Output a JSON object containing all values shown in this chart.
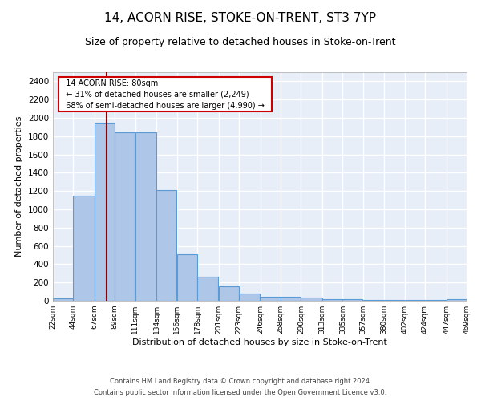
{
  "title": "14, ACORN RISE, STOKE-ON-TRENT, ST3 7YP",
  "subtitle": "Size of property relative to detached houses in Stoke-on-Trent",
  "xlabel": "Distribution of detached houses by size in Stoke-on-Trent",
  "ylabel": "Number of detached properties",
  "footnote1": "Contains HM Land Registry data © Crown copyright and database right 2024.",
  "footnote2": "Contains public sector information licensed under the Open Government Licence v3.0.",
  "annotation_line1": "14 ACORN RISE: 80sqm",
  "annotation_line2": "← 31% of detached houses are smaller (2,249)",
  "annotation_line3": "68% of semi-detached houses are larger (4,990) →",
  "property_size_sqm": 80,
  "bin_edges": [
    22,
    44,
    67,
    89,
    111,
    134,
    156,
    178,
    201,
    223,
    246,
    268,
    290,
    313,
    335,
    357,
    380,
    402,
    424,
    447,
    469
  ],
  "bar_heights": [
    25,
    1150,
    1950,
    1840,
    1840,
    1210,
    510,
    265,
    155,
    80,
    40,
    40,
    35,
    15,
    20,
    10,
    5,
    10,
    5,
    15
  ],
  "bar_color": "#aec6e8",
  "bar_edge_color": "#5b9bd5",
  "vline_color": "#8b0000",
  "background_color": "#e8eef8",
  "grid_color": "#ffffff",
  "ylim": [
    0,
    2500
  ],
  "yticks": [
    0,
    200,
    400,
    600,
    800,
    1000,
    1200,
    1400,
    1600,
    1800,
    2000,
    2200,
    2400
  ],
  "title_fontsize": 11,
  "subtitle_fontsize": 9,
  "xlabel_fontsize": 8,
  "ylabel_fontsize": 8,
  "tick_fontsize": 7.5,
  "xtick_fontsize": 6.5,
  "footnote_fontsize": 6,
  "annot_fontsize": 7
}
